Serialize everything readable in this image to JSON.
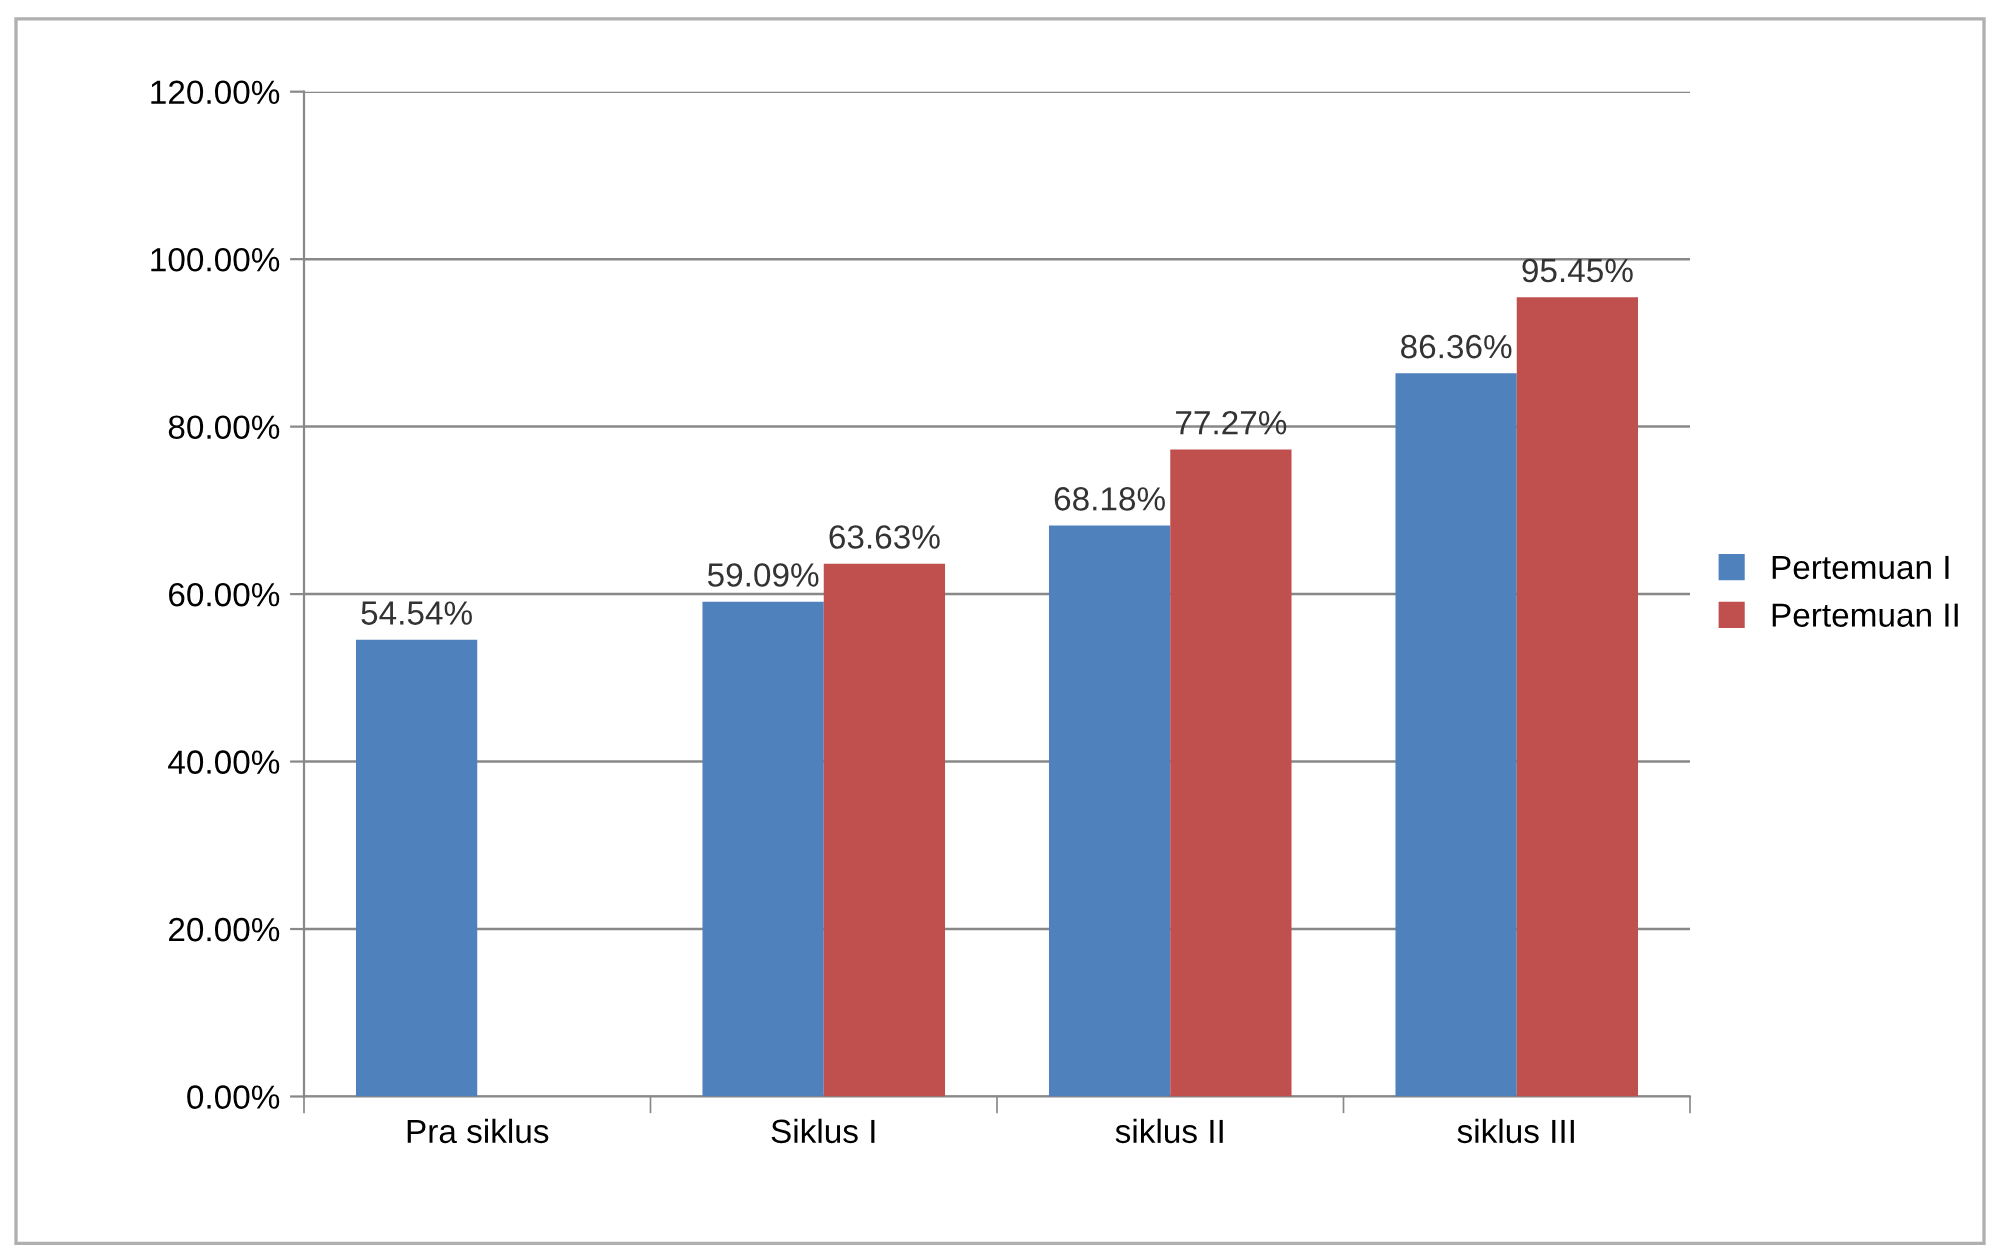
{
  "chart_data": {
    "type": "bar",
    "categories": [
      "Pra siklus",
      "Siklus I",
      "siklus II",
      "siklus III"
    ],
    "series": [
      {
        "name": "Pertemuan I",
        "color": "#4f81bd",
        "values": [
          54.54,
          59.09,
          68.18,
          86.36
        ],
        "value_labels": [
          "54.54%",
          "59.09%",
          "68.18%",
          "86.36%"
        ]
      },
      {
        "name": "Pertemuan II",
        "color": "#c0504d",
        "values": [
          null,
          63.63,
          77.27,
          95.45
        ],
        "value_labels": [
          null,
          "63.63%",
          "77.27%",
          "95.45%"
        ]
      }
    ],
    "ylim": [
      0,
      120
    ],
    "yticks": [
      {
        "value": 0,
        "label": "0.00%"
      },
      {
        "value": 20,
        "label": "20.00%"
      },
      {
        "value": 40,
        "label": "40.00%"
      },
      {
        "value": 60,
        "label": "60.00%"
      },
      {
        "value": 80,
        "label": "80.00%"
      },
      {
        "value": 100,
        "label": "100.00%"
      },
      {
        "value": 120,
        "label": "120.00%"
      }
    ],
    "grid": "y",
    "legend": "right"
  }
}
